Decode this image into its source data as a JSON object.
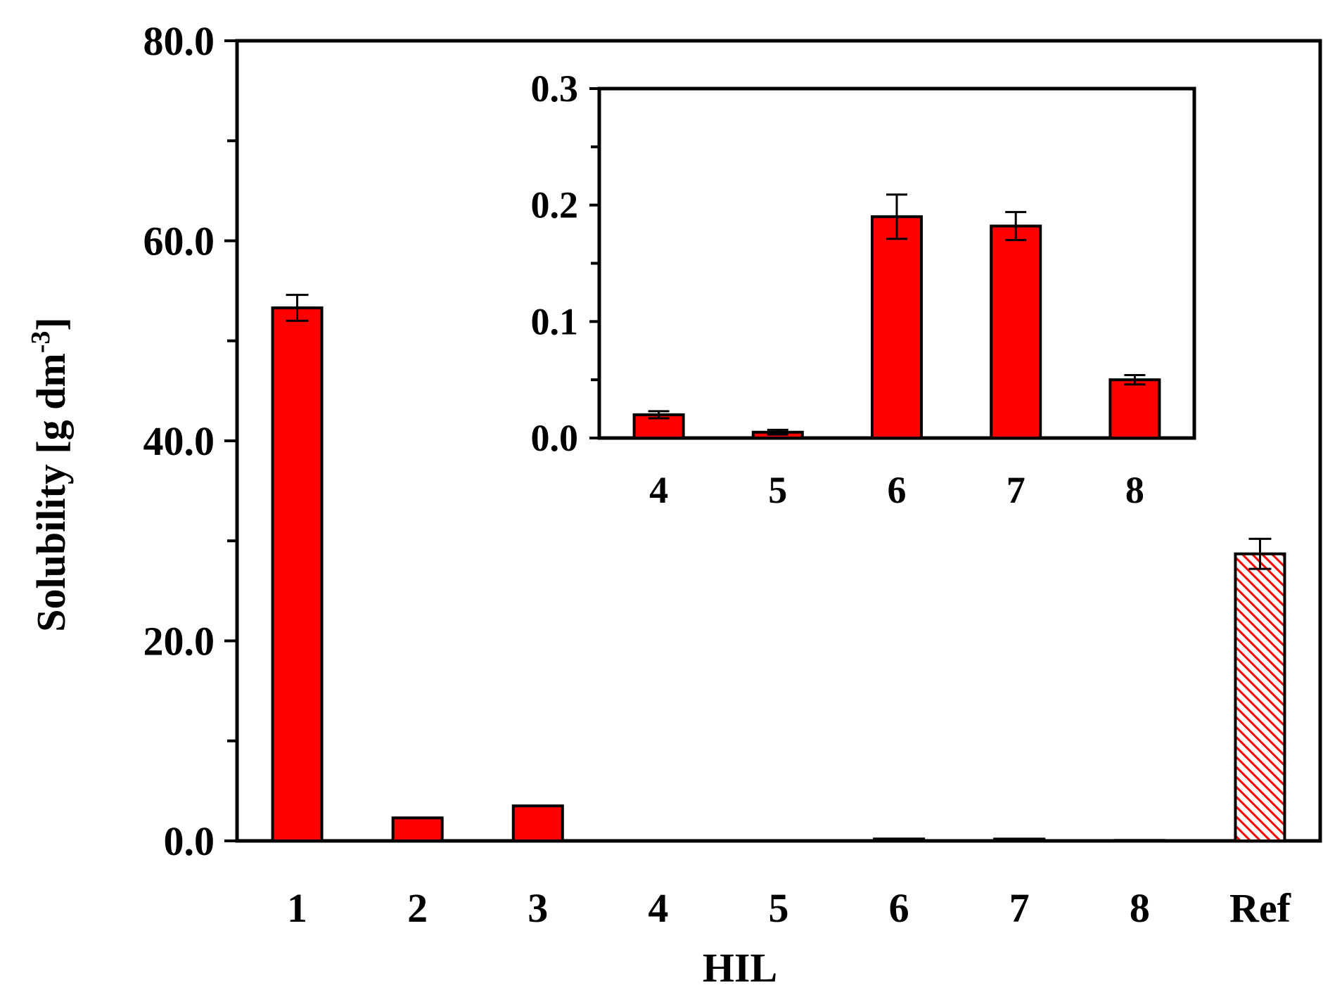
{
  "chart_data": [
    {
      "type": "bar",
      "xlabel": "HIL",
      "ylabel": "Solubility [g dm",
      "ylabel_superscript": "-3",
      "ylabel_close": "]",
      "ylim": [
        0,
        80
      ],
      "yticks_major": [
        "0.0",
        "20.0",
        "40.0",
        "60.0",
        "80.0"
      ],
      "ytick_values": [
        0,
        20,
        40,
        60,
        80
      ],
      "yminor_step": 10,
      "categories": [
        "1",
        "2",
        "3",
        "4",
        "5",
        "6",
        "7",
        "8",
        "Ref"
      ],
      "values": [
        53.3,
        2.3,
        3.5,
        0.02,
        0.005,
        0.19,
        0.182,
        0.05,
        28.7
      ],
      "errors": [
        1.3,
        0.1,
        0.1,
        0.003,
        0.002,
        0.019,
        0.012,
        0.004,
        1.5
      ],
      "bar_styles": [
        "solid",
        "solid",
        "solid",
        "solid",
        "solid",
        "solid",
        "solid",
        "solid",
        "hatched"
      ],
      "grid": false
    },
    {
      "type": "bar",
      "inset": true,
      "ylim": [
        0,
        0.3
      ],
      "yticks_major": [
        "0.0",
        "0.1",
        "0.2",
        "0.3"
      ],
      "ytick_values": [
        0,
        0.1,
        0.2,
        0.3
      ],
      "yminor_step": 0.05,
      "categories": [
        "4",
        "5",
        "6",
        "7",
        "8"
      ],
      "values": [
        0.02,
        0.005,
        0.19,
        0.182,
        0.05
      ],
      "errors": [
        0.003,
        0.002,
        0.019,
        0.012,
        0.004
      ],
      "grid": false
    }
  ],
  "colors": {
    "bar_fill": "#ff0000",
    "bar_stroke": "#000000",
    "hatch_line": "#ff0000",
    "axis": "#000000"
  }
}
